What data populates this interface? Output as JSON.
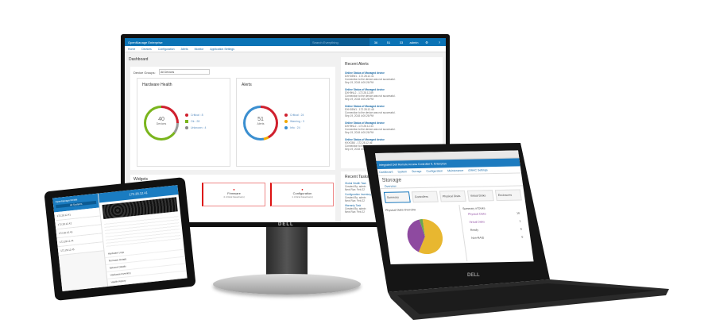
{
  "monitor": {
    "brand": "DELL",
    "app_title": "OpenManage Enterprise",
    "search_placeholder": "Search Everything",
    "top_icons": [
      {
        "icon": "jobs-icon",
        "label": "36"
      },
      {
        "icon": "flag-icon",
        "label": "51"
      },
      {
        "icon": "devices-icon",
        "label": "33"
      },
      {
        "icon": "user-icon",
        "label": "admin"
      },
      {
        "icon": "gear-icon",
        "label": ""
      },
      {
        "icon": "help-icon",
        "label": ""
      }
    ],
    "nav": [
      "Home",
      "Devices",
      "Configuration",
      "Alerts",
      "Monitor",
      "Application Settings"
    ],
    "page_title": "Dashboard",
    "device_groups_label": "Device Groups:",
    "device_groups_value": "All Devices",
    "hardware_health": {
      "title": "Hardware Health",
      "count": "40",
      "unit": "Devices",
      "legend": [
        {
          "label": "Critical : 8",
          "color": "#d0202e"
        },
        {
          "label": "Ok : 28",
          "color": "#7ab51d"
        },
        {
          "label": "Unknown : 4",
          "color": "#888888"
        }
      ]
    },
    "alerts": {
      "title": "Alerts",
      "count": "51",
      "unit": "Alerts",
      "legend": [
        {
          "label": "Critical : 24",
          "color": "#d0202e"
        },
        {
          "label": "Warning : 3",
          "color": "#f2a900"
        },
        {
          "label": "Info : 24",
          "color": "#3b8fd0"
        }
      ]
    },
    "widgets_title": "Widgets",
    "widgets": [
      {
        "title": "Firmware",
        "sub": "4 critical baseline(s)"
      },
      {
        "title": "Configuration",
        "sub": "1 critical baseline(s)"
      }
    ],
    "recent_alerts_title": "Recent Alerts",
    "recent_alerts": [
      {
        "title": "Online Status of Managed device",
        "device": "DXH03W1 - 172.28.12.41",
        "msg": "Connection to the device was not successful.",
        "time": "Sep 19, 2018 4:00:26 PM"
      },
      {
        "title": "Online Status of Managed device",
        "device": "DXH9NL2 - 172.28.12.89",
        "msg": "Connection to the device was not successful.",
        "time": "Sep 19, 2018 4:00:26 PM"
      },
      {
        "title": "Online Status of Managed device",
        "device": "DXH03W1 - 172.28.12.48",
        "msg": "Connection to the device was not successful.",
        "time": "Sep 19, 2018 4:00:26 PM"
      },
      {
        "title": "Online Status of Managed device",
        "device": "DXH9NL2 - 172.28.12.44",
        "msg": "Connection to the device was not successful.",
        "time": "Sep 19, 2018 4:00:26 PM"
      },
      {
        "title": "Online Status of Managed device",
        "device": "HXXGB4 - 172.28.12.46",
        "msg": "Connection to the device was not successful.",
        "time": "Sep 19, 2018 4:00:26 PM"
      }
    ],
    "recent_tasks_title": "Recent Tasks",
    "recent_tasks": [
      {
        "name": "Global Health Task",
        "by": "Created By: admin",
        "next": "Next Run: Feb 22"
      },
      {
        "name": "Configuration Inventory",
        "by": "Created By: admin",
        "next": "Next Run: Feb 22"
      },
      {
        "name": "Warranty Task",
        "by": "Created By: admin",
        "next": "Next Run: Feb 22"
      }
    ]
  },
  "laptop": {
    "brand": "DELL",
    "app_title": "Integrated Dell Remote Access Controller 9, Enterprise",
    "nav": [
      "Dashboard",
      "System",
      "Storage",
      "Configuration",
      "Maintenance",
      "iDRAC Settings"
    ],
    "page_title": "Storage",
    "tab": "Overview",
    "cards": [
      "Summary",
      "Controllers",
      "Physical Disks",
      "Virtual Disks",
      "Enclosures"
    ],
    "left_panel": "Physical Disks Overview",
    "right_panel": "Summary of Disks",
    "summary_rows": [
      {
        "label": "Physical Disks",
        "value": "16"
      },
      {
        "label": "Virtual Disks",
        "value": "1"
      },
      {
        "label": "Ready",
        "value": "5"
      },
      {
        "label": "Non-RAID",
        "value": "0"
      }
    ],
    "chart_data": {
      "type": "pie",
      "values": [
        58,
        39,
        3
      ],
      "colors": [
        "#e8b730",
        "#8e4aa0",
        "#6aa84f"
      ]
    }
  },
  "tablet": {
    "app_title": "OpenManage Mobile",
    "header": "172.28.12.41",
    "button": "All Systems",
    "list": [
      "172.28.12.41",
      "172.28.12.42",
      "172.28.12.43",
      "172.28.12.44",
      "172.28.12.45"
    ],
    "sections": [
      "Hardware Logs",
      "Firmware Details",
      "Network Details",
      "Hardware Inventory",
      "Health History"
    ]
  }
}
